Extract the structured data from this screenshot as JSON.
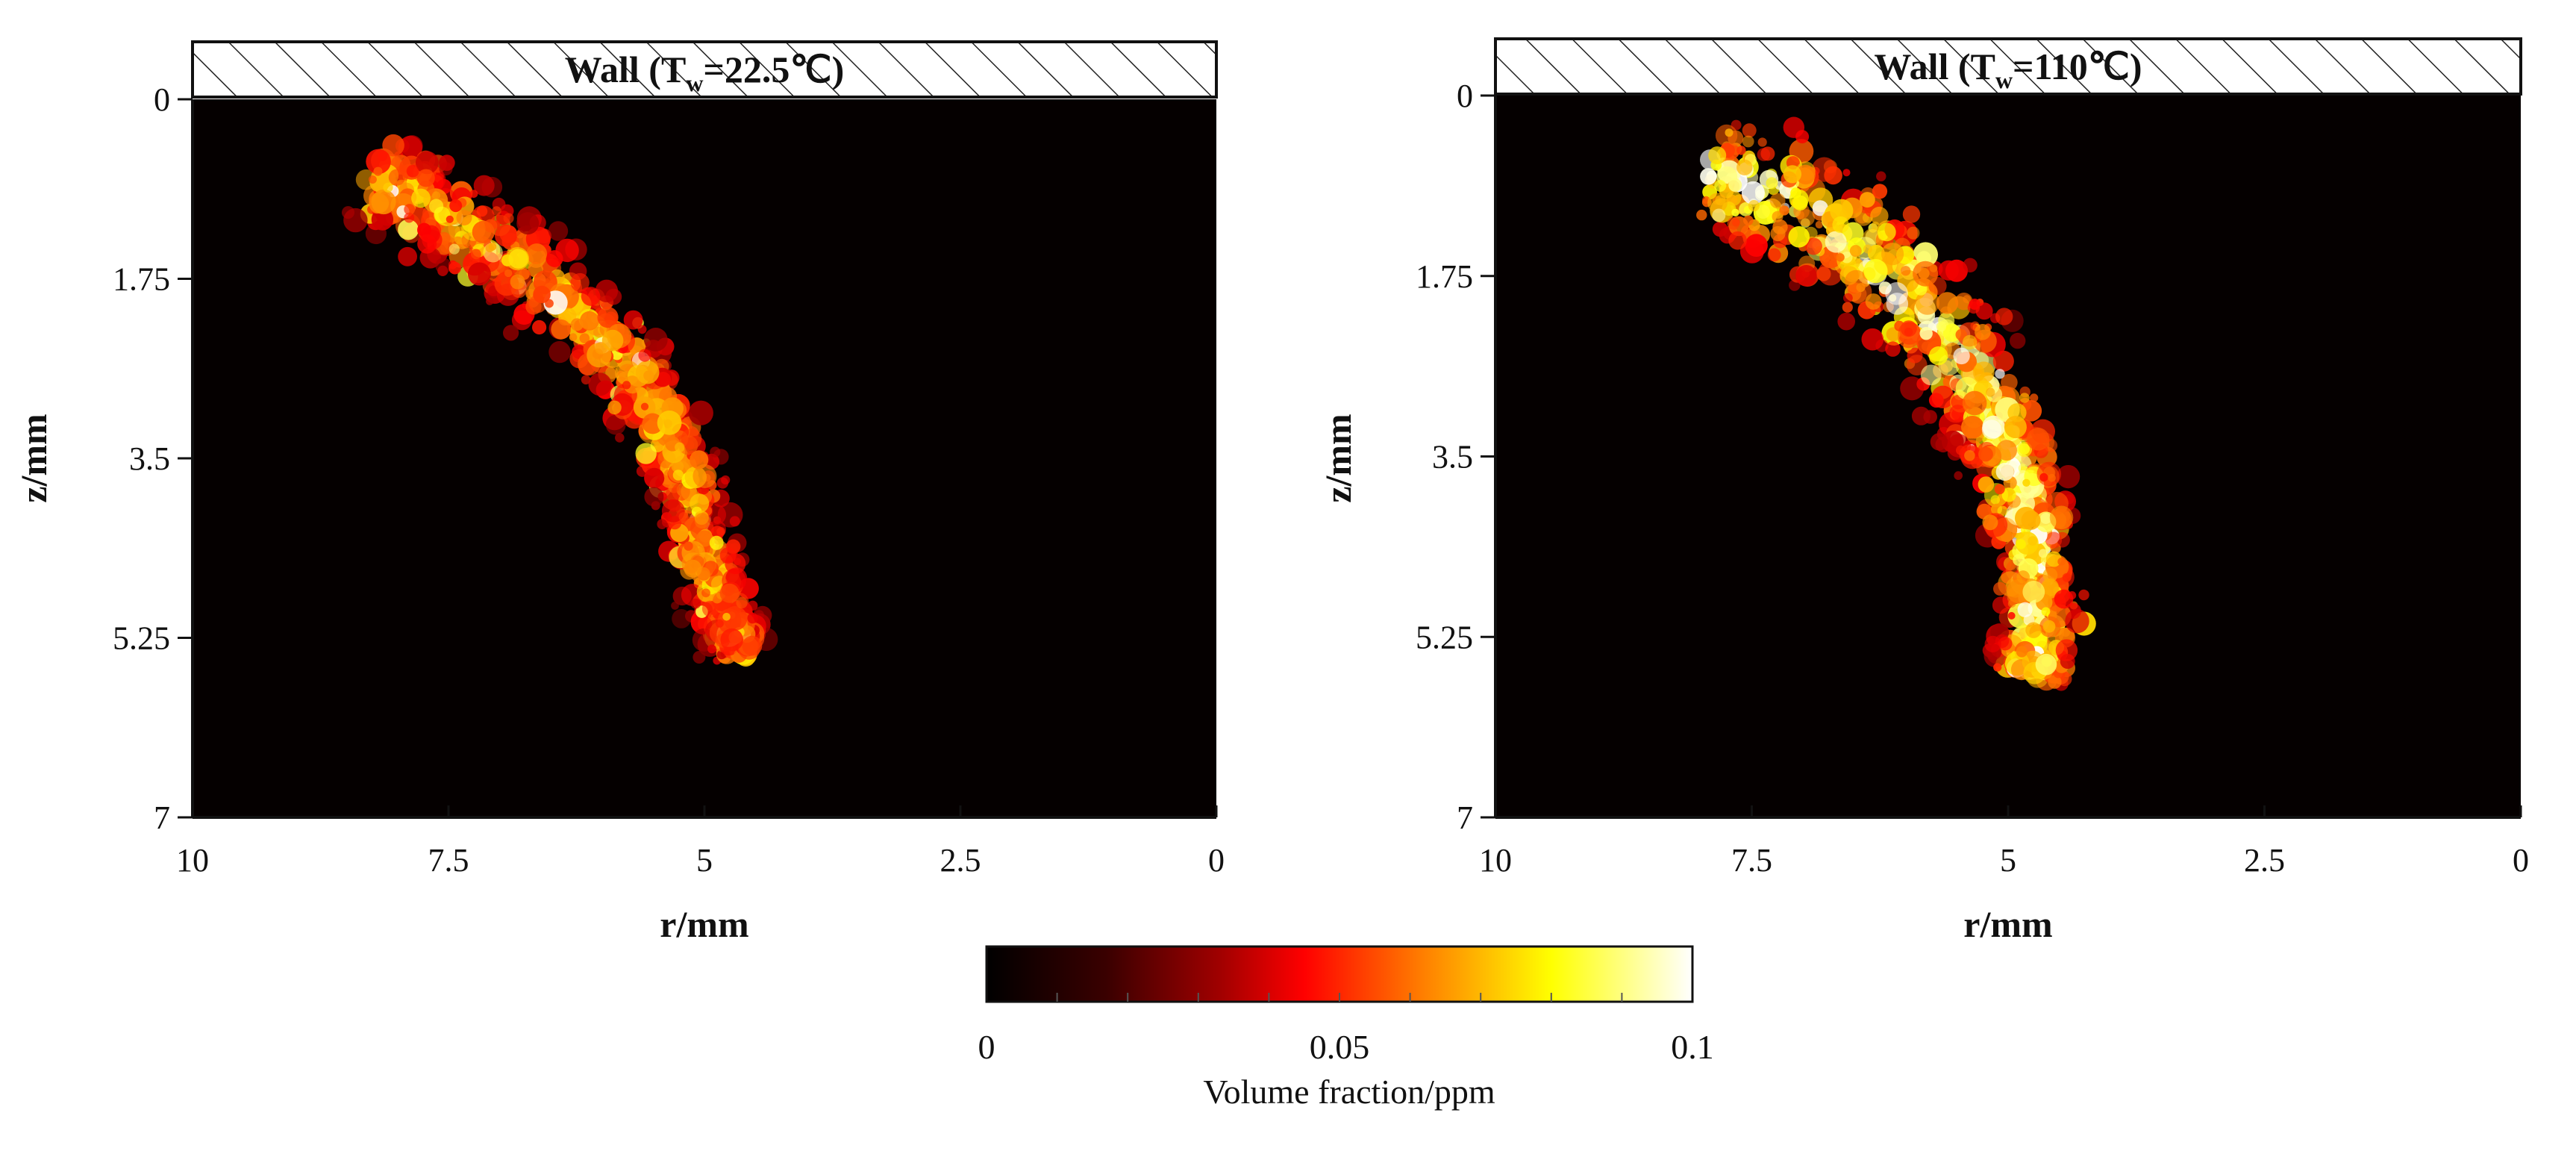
{
  "chart_data": [
    {
      "type": "heatmap",
      "panel": "left",
      "wall_label": "Wall (T",
      "wall_sub": "w",
      "wall_value": "=22.5℃)",
      "xlabel": "r/mm",
      "ylabel": "z/mm",
      "xlim": [
        10,
        0
      ],
      "ylim": [
        0,
        7
      ],
      "xticks": [
        "10",
        "7.5",
        "5",
        "2.5",
        "0"
      ],
      "yticks": [
        "0",
        "1.75",
        "3.5",
        "5.25",
        "7"
      ],
      "plume_centerline": [
        [
          8.2,
          0.7
        ],
        [
          7.6,
          1.1
        ],
        [
          6.8,
          1.6
        ],
        [
          6.0,
          2.3
        ],
        [
          5.5,
          3.0
        ],
        [
          5.2,
          3.7
        ],
        [
          5.0,
          4.4
        ],
        [
          4.8,
          5.1
        ],
        [
          4.6,
          5.4
        ]
      ],
      "peak_volume_fraction_ppm": 0.075
    },
    {
      "type": "heatmap",
      "panel": "right",
      "wall_label": "Wall (T",
      "wall_sub": "w",
      "wall_value": "=110℃)",
      "xlabel": "r/mm",
      "ylabel": "z/mm",
      "xlim": [
        10,
        0
      ],
      "ylim": [
        0,
        7
      ],
      "xticks": [
        "10",
        "7.5",
        "5",
        "2.5",
        "0"
      ],
      "yticks": [
        "0",
        "1.75",
        "3.5",
        "5.25",
        "7"
      ],
      "plume_centerline": [
        [
          7.9,
          0.7
        ],
        [
          7.2,
          1.0
        ],
        [
          6.4,
          1.5
        ],
        [
          5.8,
          2.1
        ],
        [
          5.3,
          2.8
        ],
        [
          5.0,
          3.4
        ],
        [
          4.8,
          4.1
        ],
        [
          4.7,
          4.7
        ],
        [
          4.7,
          5.3
        ],
        [
          4.8,
          5.6
        ]
      ],
      "peak_volume_fraction_ppm": 0.095
    }
  ],
  "colorbar": {
    "label": "Volume fraction/ppm",
    "min_label": "0",
    "mid_label": "0.05",
    "max_label": "0.1",
    "stops": [
      "#000000",
      "#3a0000",
      "#a00000",
      "#ff0000",
      "#ff8000",
      "#ffff00",
      "#ffffff"
    ]
  }
}
